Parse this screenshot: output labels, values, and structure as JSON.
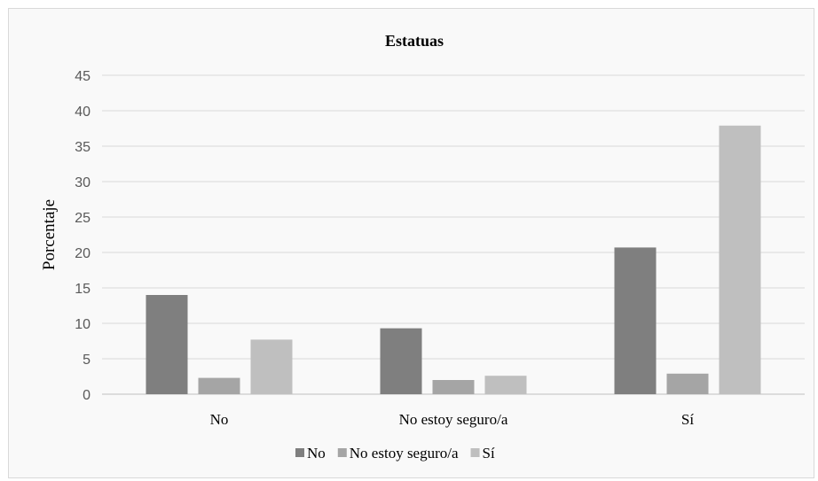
{
  "chart_data": {
    "type": "bar",
    "title": "Estatuas",
    "xlabel": "",
    "ylabel": "Porcentaje",
    "ylim": [
      0,
      45
    ],
    "yticks": [
      0,
      5,
      10,
      15,
      20,
      25,
      30,
      35,
      40,
      45
    ],
    "categories": [
      "No",
      "No estoy seguro/a",
      "Sí"
    ],
    "series": [
      {
        "name": "No",
        "color": "#7f7f7f",
        "values": [
          14.0,
          9.3,
          20.7
        ]
      },
      {
        "name": "No estoy seguro/a",
        "color": "#a5a5a5",
        "values": [
          2.3,
          2.0,
          2.9
        ]
      },
      {
        "name": "Sí",
        "color": "#bfbfbf",
        "values": [
          7.7,
          2.6,
          37.9
        ]
      }
    ],
    "grid": true,
    "legend_position": "bottom"
  }
}
